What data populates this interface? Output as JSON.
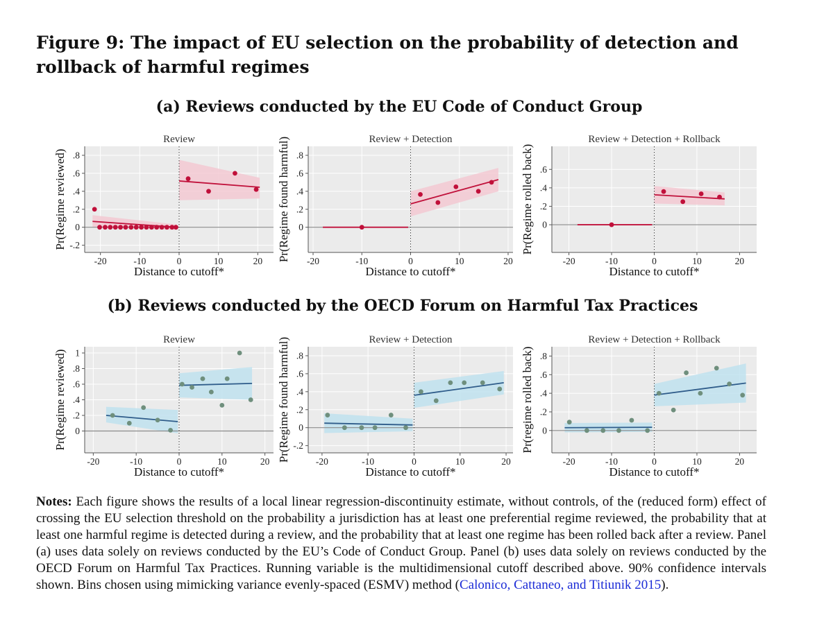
{
  "figure": {
    "title": "Figure 9:  The impact of EU selection on the probability of detection and rollback of harmful regimes"
  },
  "panels": [
    {
      "title": "(a) Reviews conducted by the EU Code of Conduct Group"
    },
    {
      "title": "(b) Reviews conducted by the OECD Forum on Harmful Tax Practices"
    }
  ],
  "notes": {
    "label": "Notes:",
    "text": " Each figure shows the results of a local linear regression-discontinuity estimate, without controls, of the (reduced form) effect of crossing the EU selection threshold on the probability a jurisdiction has at least one preferential regime reviewed, the probability that at least one harmful regime is detected during a review, and the probability that at least one regime has been rolled back after a review.  Panel (a) uses data solely on reviews conducted by the EU’s Code of Conduct Group.  Panel (b) uses data solely on reviews conducted by the OECD Forum on Harmful Tax Practices. Running variable is the multidimensional cutoff described above. 90% confidence intervals shown. Bins chosen using mimicking variance evenly-spaced (ESMV) method (",
    "citation": "Calonico, Cattaneo, and Titiunik 2015",
    "end": ")."
  },
  "colors": {
    "panel_a_line": "#c0103a",
    "panel_a_band": "#f3c9d2",
    "panel_b_line": "#2f5c8a",
    "panel_b_marker": "#6f8f7d",
    "panel_b_band": "#bfe2ef",
    "plot_bg": "#ebebeb",
    "grid": "#ffffff",
    "citation": "#1a2ad6"
  },
  "chart_data": [
    {
      "type": "scatter",
      "panel": "a",
      "title": "Review",
      "xlabel": "Distance to cutoff*",
      "ylabel": "Pr(Regime reviewed)",
      "xlim": [
        -24,
        24
      ],
      "ylim": [
        -0.28,
        0.9
      ],
      "xticks": [
        -20,
        -10,
        0,
        10,
        20
      ],
      "xtick_labels": [
        "-20",
        "-10",
        "0",
        "10",
        "20"
      ],
      "yticks": [
        -0.2,
        0,
        0.2,
        0.4,
        0.6,
        0.8
      ],
      "ytick_labels": [
        "-.2",
        "0",
        ".2",
        ".4",
        ".6",
        ".8"
      ],
      "cutoff": 0,
      "points": [
        [
          -21.5,
          0.2
        ],
        [
          -20.2,
          0
        ],
        [
          -18.8,
          0
        ],
        [
          -17.5,
          0
        ],
        [
          -16.2,
          0
        ],
        [
          -14.9,
          0
        ],
        [
          -13.6,
          0
        ],
        [
          -12.2,
          0
        ],
        [
          -10.9,
          0
        ],
        [
          -9.6,
          0
        ],
        [
          -8.3,
          0
        ],
        [
          -7,
          0
        ],
        [
          -5.7,
          0
        ],
        [
          -4.4,
          0
        ],
        [
          -3.1,
          0
        ],
        [
          -1.8,
          0
        ],
        [
          -0.8,
          0
        ],
        [
          2.3,
          0.54
        ],
        [
          7.5,
          0.4
        ],
        [
          14.2,
          0.6
        ],
        [
          19.6,
          0.42
        ]
      ],
      "fits": [
        {
          "x": [
            -22,
            -0.5
          ],
          "y": [
            0.065,
            0.0
          ],
          "ci_upper": [
            0.135,
            0.03
          ],
          "ci_lower": [
            0.0,
            -0.03
          ]
        },
        {
          "x": [
            0,
            20.5
          ],
          "y": [
            0.515,
            0.445
          ],
          "ci_upper": [
            0.75,
            0.55
          ],
          "ci_lower": [
            0.3,
            0.32
          ]
        }
      ]
    },
    {
      "type": "scatter",
      "panel": "a",
      "title": "Review + Detection",
      "xlabel": "Distance to cutoff*",
      "ylabel": "Pr(Regime found harmful)",
      "xlim": [
        -21,
        21
      ],
      "ylim": [
        -0.28,
        0.9
      ],
      "xticks": [
        -20,
        -10,
        0,
        10,
        20
      ],
      "xtick_labels": [
        "-20",
        "-10",
        "0",
        "10",
        "20"
      ],
      "yticks": [
        0,
        0.2,
        0.4,
        0.6,
        0.8
      ],
      "ytick_labels": [
        "0",
        ".2",
        ".4",
        ".6",
        ".8"
      ],
      "cutoff": 0,
      "points": [
        [
          -10,
          0
        ],
        [
          2,
          0.365
        ],
        [
          5.6,
          0.275
        ],
        [
          9.3,
          0.45
        ],
        [
          13.9,
          0.4
        ],
        [
          16.6,
          0.5
        ]
      ],
      "fits": [
        {
          "x": [
            -18,
            -0.5
          ],
          "y": [
            0,
            0
          ],
          "ci_upper": [
            0,
            0
          ],
          "ci_lower": [
            0,
            0
          ]
        },
        {
          "x": [
            0,
            18
          ],
          "y": [
            0.26,
            0.53
          ],
          "ci_upper": [
            0.4,
            0.66
          ],
          "ci_lower": [
            0.12,
            0.4
          ]
        }
      ]
    },
    {
      "type": "scatter",
      "panel": "a",
      "title": "Review + Detection + Rollback",
      "xlabel": "Distance to cutoff*",
      "ylabel": "Pr(Regime rolled back)",
      "xlim": [
        -24,
        24
      ],
      "ylim": [
        -0.3,
        0.85
      ],
      "xticks": [
        -20,
        -10,
        0,
        10,
        20
      ],
      "xtick_labels": [
        "-20",
        "-10",
        "0",
        "10",
        "20"
      ],
      "yticks": [
        0,
        0.2,
        0.4,
        0.6
      ],
      "ytick_labels": [
        "0",
        ".2",
        ".4",
        ".6"
      ],
      "cutoff": 0,
      "points": [
        [
          -10,
          0
        ],
        [
          2.2,
          0.36
        ],
        [
          6.7,
          0.25
        ],
        [
          11,
          0.335
        ],
        [
          15.3,
          0.3
        ]
      ],
      "fits": [
        {
          "x": [
            -18,
            -0.5
          ],
          "y": [
            0,
            0
          ],
          "ci_upper": [
            0,
            0
          ],
          "ci_lower": [
            0,
            0
          ]
        },
        {
          "x": [
            0,
            16.5
          ],
          "y": [
            0.325,
            0.28
          ],
          "ci_upper": [
            0.42,
            0.35
          ],
          "ci_lower": [
            0.23,
            0.21
          ]
        }
      ]
    },
    {
      "type": "scatter",
      "panel": "b",
      "title": "Review",
      "xlabel": "Distance to cutoff*",
      "ylabel": "Pr(Regime reviewed)",
      "xlim": [
        -22,
        22
      ],
      "ylim": [
        -0.28,
        1.08
      ],
      "xticks": [
        -20,
        -10,
        0,
        10,
        20
      ],
      "xtick_labels": [
        "-20",
        "-10",
        "0",
        "10",
        "20"
      ],
      "yticks": [
        0,
        0.2,
        0.4,
        0.6,
        0.8,
        1
      ],
      "ytick_labels": [
        "0",
        ".2",
        ".4",
        ".6",
        ".8",
        "1"
      ],
      "cutoff": 0,
      "points": [
        [
          -15.5,
          0.2
        ],
        [
          -11.6,
          0.1
        ],
        [
          -8.3,
          0.3
        ],
        [
          -5,
          0.14
        ],
        [
          -2,
          0.01
        ],
        [
          0.7,
          0.6
        ],
        [
          3,
          0.56
        ],
        [
          5.5,
          0.67
        ],
        [
          7.5,
          0.5
        ],
        [
          10,
          0.33
        ],
        [
          11.2,
          0.67
        ],
        [
          14.1,
          1
        ],
        [
          16.7,
          0.4
        ]
      ],
      "fits": [
        {
          "x": [
            -17,
            -0.3
          ],
          "y": [
            0.2,
            0.12
          ],
          "ci_upper": [
            0.31,
            0.27
          ],
          "ci_lower": [
            0.11,
            -0.03
          ]
        },
        {
          "x": [
            0,
            17
          ],
          "y": [
            0.585,
            0.61
          ],
          "ci_upper": [
            0.74,
            0.82
          ],
          "ci_lower": [
            0.43,
            0.4
          ]
        }
      ]
    },
    {
      "type": "scatter",
      "panel": "b",
      "title": "Review + Detection",
      "xlabel": "Distance to cutoff*",
      "ylabel": "Pr(Regime found harmful)",
      "xlim": [
        -23,
        21.5
      ],
      "ylim": [
        -0.28,
        0.9
      ],
      "xticks": [
        -20,
        -10,
        0,
        10,
        20
      ],
      "xtick_labels": [
        "-20",
        "-10",
        "0",
        "10",
        "20"
      ],
      "yticks": [
        -0.2,
        0,
        0.2,
        0.4,
        0.6,
        0.8
      ],
      "ytick_labels": [
        "-.2",
        "0",
        ".2",
        ".4",
        ".6",
        ".8"
      ],
      "cutoff": 0,
      "points": [
        [
          -18.8,
          0.14
        ],
        [
          -15.1,
          0
        ],
        [
          -11.4,
          0
        ],
        [
          -8.5,
          0
        ],
        [
          -5,
          0.14
        ],
        [
          -1.8,
          0
        ],
        [
          1.5,
          0.4
        ],
        [
          4.8,
          0.3
        ],
        [
          7.9,
          0.5
        ],
        [
          10.9,
          0.5
        ],
        [
          14.9,
          0.5
        ],
        [
          18.6,
          0.43
        ]
      ],
      "fits": [
        {
          "x": [
            -19.5,
            -0.3
          ],
          "y": [
            0.05,
            0.03
          ],
          "ci_upper": [
            0.16,
            0.1
          ],
          "ci_lower": [
            -0.06,
            -0.04
          ]
        },
        {
          "x": [
            0,
            19.5
          ],
          "y": [
            0.36,
            0.5
          ],
          "ci_upper": [
            0.5,
            0.63
          ],
          "ci_lower": [
            0.22,
            0.37
          ]
        }
      ]
    },
    {
      "type": "scatter",
      "panel": "b",
      "title": "Review + Detection + Rollback",
      "xlabel": "Distance to cutoff*",
      "ylabel": "Pr(regime rolled back)",
      "xlim": [
        -24,
        24
      ],
      "ylim": [
        -0.24,
        0.9
      ],
      "xticks": [
        -20,
        -10,
        0,
        10,
        20
      ],
      "xtick_labels": [
        "-20",
        "-10",
        "0",
        "10",
        "20"
      ],
      "yticks": [
        0,
        0.2,
        0.4,
        0.6,
        0.8
      ],
      "ytick_labels": [
        "0",
        ".2",
        ".4",
        ".6",
        ".8"
      ],
      "cutoff": 0,
      "points": [
        [
          -19.9,
          0.09
        ],
        [
          -15.8,
          0
        ],
        [
          -12,
          0
        ],
        [
          -8.3,
          0
        ],
        [
          -5.3,
          0.11
        ],
        [
          -1.6,
          0
        ],
        [
          1.1,
          0.4
        ],
        [
          4.5,
          0.22
        ],
        [
          7.5,
          0.62
        ],
        [
          10.8,
          0.4
        ],
        [
          14.6,
          0.67
        ],
        [
          17.6,
          0.5
        ],
        [
          20.7,
          0.38
        ]
      ],
      "fits": [
        {
          "x": [
            -21,
            -0.5
          ],
          "y": [
            0.03,
            0.035
          ],
          "ci_upper": [
            0.08,
            0.085
          ],
          "ci_lower": [
            -0.02,
            -0.015
          ]
        },
        {
          "x": [
            0,
            21.5
          ],
          "y": [
            0.38,
            0.51
          ],
          "ci_upper": [
            0.5,
            0.72
          ],
          "ci_lower": [
            0.26,
            0.3
          ]
        }
      ]
    }
  ]
}
